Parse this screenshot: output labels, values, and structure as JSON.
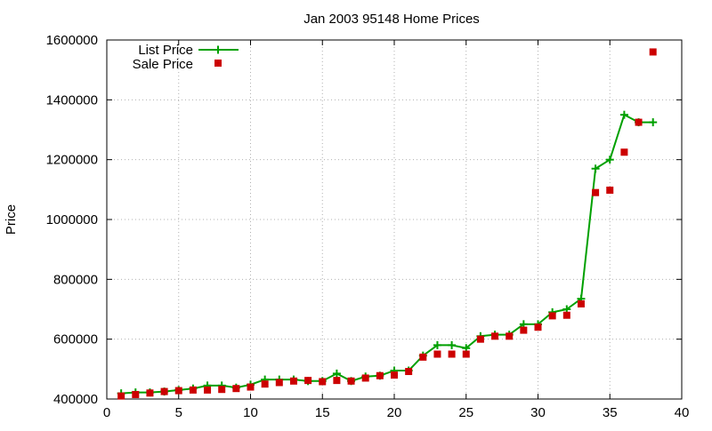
{
  "chart_data": {
    "type": "line",
    "title": "Jan 2003 95148 Home Prices",
    "xlabel": "",
    "ylabel": "Price",
    "xlim": [
      0,
      40
    ],
    "ylim": [
      400000,
      1600000
    ],
    "x_ticks": [
      0,
      5,
      10,
      15,
      20,
      25,
      30,
      35,
      40
    ],
    "y_ticks": [
      400000,
      600000,
      800000,
      1000000,
      1200000,
      1400000,
      1600000
    ],
    "grid": true,
    "legend_position": "top-left",
    "series": [
      {
        "name": "List Price",
        "style": "line-with-plus-markers",
        "color": "#00a000",
        "x": [
          1,
          2,
          3,
          4,
          5,
          6,
          7,
          8,
          9,
          10,
          11,
          12,
          13,
          14,
          15,
          16,
          17,
          18,
          19,
          20,
          21,
          22,
          23,
          24,
          25,
          26,
          27,
          28,
          29,
          30,
          31,
          32,
          33,
          34,
          35,
          36,
          37,
          38
        ],
        "values": [
          419000,
          422000,
          422000,
          425000,
          430000,
          435000,
          445000,
          445000,
          438000,
          448000,
          465000,
          465000,
          465000,
          460000,
          460000,
          485000,
          460000,
          475000,
          478000,
          495000,
          495000,
          545000,
          580000,
          580000,
          570000,
          610000,
          615000,
          615000,
          650000,
          650000,
          690000,
          700000,
          735000,
          1170000,
          1200000,
          1350000,
          1325000,
          1325000
        ]
      },
      {
        "name": "Sale Price",
        "style": "square-markers",
        "color": "#cc0000",
        "x": [
          1,
          2,
          3,
          4,
          5,
          6,
          7,
          8,
          9,
          10,
          11,
          12,
          13,
          14,
          15,
          16,
          17,
          18,
          19,
          20,
          21,
          22,
          23,
          24,
          25,
          26,
          27,
          28,
          29,
          30,
          31,
          32,
          33,
          34,
          35,
          36,
          37,
          38
        ],
        "values": [
          410000,
          415000,
          420000,
          425000,
          428000,
          430000,
          430000,
          432000,
          435000,
          440000,
          450000,
          455000,
          460000,
          462000,
          458000,
          462000,
          460000,
          470000,
          478000,
          480000,
          492000,
          540000,
          550000,
          550000,
          550000,
          600000,
          610000,
          610000,
          630000,
          640000,
          678000,
          680000,
          718000,
          1090000,
          1098000,
          1225000,
          1325000,
          1560000
        ]
      }
    ]
  }
}
